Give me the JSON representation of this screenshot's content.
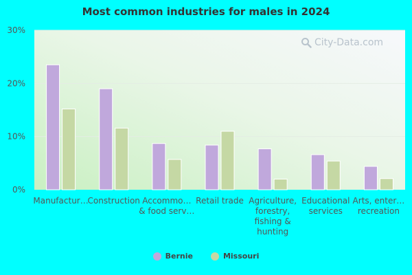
{
  "chart_data": {
    "type": "bar",
    "title": "Most common industries for males in 2024",
    "categories": [
      "Manufactur…",
      "Construction",
      "Accommo… & food serv…",
      "Retail trade",
      "Agriculture, forestry, fishing & hunting",
      "Educational services",
      "Arts, enter… recreation"
    ],
    "category_lines": [
      [
        "Manufactur…"
      ],
      [
        "Construction"
      ],
      [
        "Accommo…",
        "& food serv…"
      ],
      [
        "Retail trade"
      ],
      [
        "Agriculture,",
        "forestry,",
        "fishing &",
        "hunting"
      ],
      [
        "Educational",
        "services"
      ],
      [
        "Arts, enter…",
        "recreation"
      ]
    ],
    "series": [
      {
        "name": "Bernie",
        "color": "#c0a8dc",
        "values": [
          23.5,
          19.0,
          8.7,
          8.4,
          7.7,
          6.6,
          4.4
        ]
      },
      {
        "name": "Missouri",
        "color": "#c5d8a4",
        "values": [
          15.2,
          11.6,
          5.7,
          11.0,
          2.0,
          5.4,
          2.1
        ]
      }
    ],
    "yticks": [
      "0%",
      "10%",
      "20%",
      "30%"
    ],
    "ylim": [
      0,
      30
    ],
    "xlabel": "",
    "ylabel": "",
    "grid": true,
    "legend_position": "bottom"
  },
  "watermark": {
    "text": "City-Data.com",
    "icon": "magnifier-icon"
  }
}
